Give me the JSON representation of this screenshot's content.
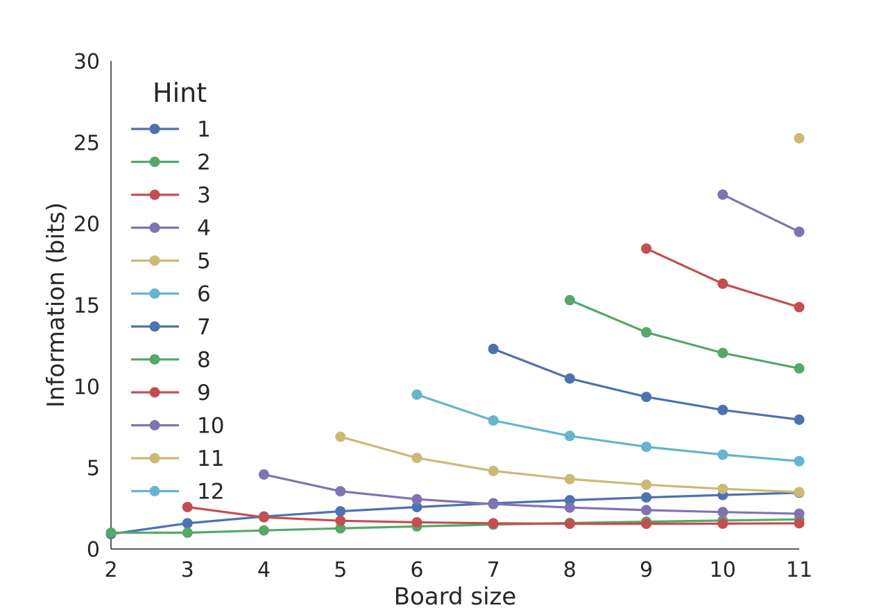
{
  "chart_data": {
    "type": "line",
    "title": "",
    "xlabel": "Board size",
    "ylabel": "Information (bits)",
    "xlim": [
      2,
      11
    ],
    "ylim": [
      0,
      30
    ],
    "xticks": [
      "2",
      "3",
      "4",
      "5",
      "6",
      "7",
      "8",
      "9",
      "10",
      "11"
    ],
    "yticks": [
      "0",
      "5",
      "10",
      "15",
      "20",
      "25",
      "30"
    ],
    "grid": false,
    "legend": {
      "title": "Hint",
      "placement": "top-left"
    },
    "x": [
      2,
      3,
      4,
      5,
      6,
      7,
      8,
      9,
      10,
      11
    ],
    "series": [
      {
        "name": "1",
        "color": "#4c72b0",
        "values": [
          0.92,
          1.58,
          2.0,
          2.32,
          2.58,
          2.81,
          3.0,
          3.17,
          3.32,
          3.46
        ]
      },
      {
        "name": "2",
        "color": "#55a868",
        "values": [
          1.0,
          1.0,
          1.14,
          1.27,
          1.39,
          1.5,
          1.6,
          1.68,
          1.75,
          1.82
        ]
      },
      {
        "name": "3",
        "color": "#c44e52",
        "values": [
          null,
          2.58,
          1.95,
          1.74,
          1.64,
          1.58,
          1.55,
          1.55,
          1.56,
          1.58
        ]
      },
      {
        "name": "4",
        "color": "#8172b2",
        "values": [
          null,
          null,
          4.58,
          3.55,
          3.06,
          2.76,
          2.55,
          2.39,
          2.27,
          2.17
        ]
      },
      {
        "name": "5",
        "color": "#ccb974",
        "values": [
          null,
          null,
          null,
          6.9,
          5.6,
          4.8,
          4.3,
          3.95,
          3.7,
          3.5
        ]
      },
      {
        "name": "6",
        "color": "#64b5cd",
        "values": [
          null,
          null,
          null,
          null,
          9.49,
          7.9,
          6.95,
          6.28,
          5.8,
          5.4
        ]
      },
      {
        "name": "7",
        "color": "#4c72b0",
        "values": [
          null,
          null,
          null,
          null,
          null,
          12.3,
          10.48,
          9.35,
          8.55,
          7.95
        ]
      },
      {
        "name": "8",
        "color": "#55a868",
        "values": [
          null,
          null,
          null,
          null,
          null,
          null,
          15.3,
          13.32,
          12.05,
          11.1
        ]
      },
      {
        "name": "9",
        "color": "#c44e52",
        "values": [
          null,
          null,
          null,
          null,
          null,
          null,
          null,
          18.47,
          16.31,
          14.87
        ]
      },
      {
        "name": "10",
        "color": "#8172b2",
        "values": [
          null,
          null,
          null,
          null,
          null,
          null,
          null,
          null,
          21.79,
          19.5
        ]
      },
      {
        "name": "11",
        "color": "#ccb974",
        "values": [
          null,
          null,
          null,
          null,
          null,
          null,
          null,
          null,
          null,
          25.25
        ]
      },
      {
        "name": "12",
        "color": "#64b5cd",
        "values": [
          null,
          null,
          null,
          null,
          null,
          null,
          null,
          null,
          null,
          null
        ]
      }
    ]
  }
}
